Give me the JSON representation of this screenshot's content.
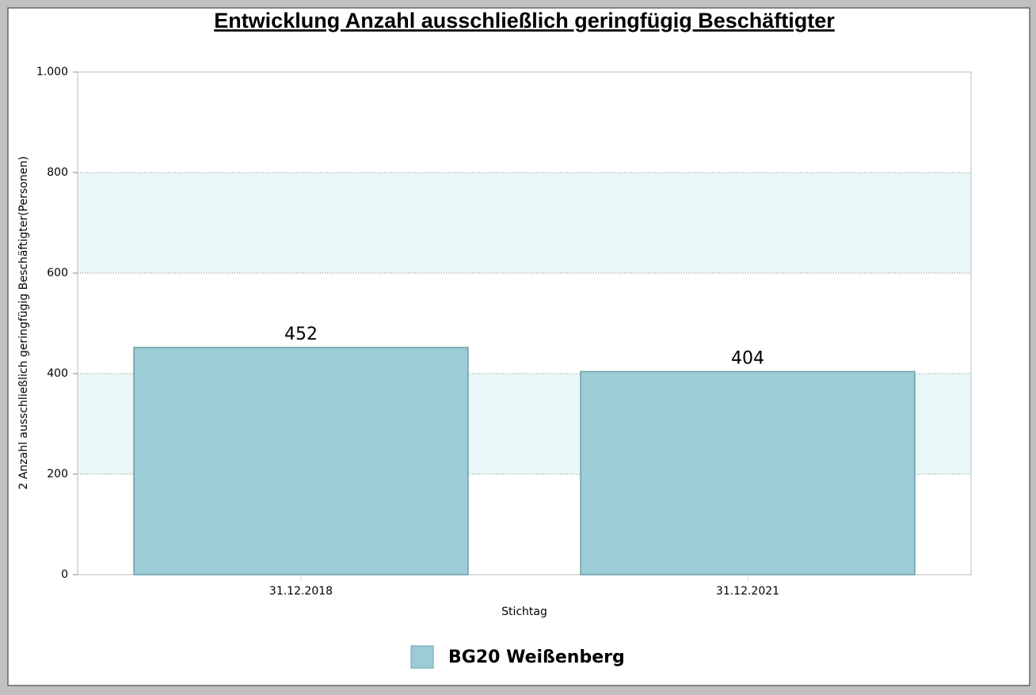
{
  "chart_data": {
    "type": "bar",
    "title": "Entwicklung Anzahl ausschließlich geringfügig Beschäftigter",
    "y_label": "2 Anzahl ausschließlich geringfügig Beschäftigter(Personen)",
    "x_label": "Stichtag",
    "categories": [
      "31.12.2018",
      "31.12.2021"
    ],
    "series": [
      {
        "name": "BG20 Weißenberg",
        "color": "#9ccdd6",
        "values": [
          452,
          404
        ]
      }
    ],
    "ylim": [
      0,
      1000
    ],
    "yticks": [
      0,
      200,
      400,
      600,
      800,
      {
        "value": 1000,
        "label": "1.000"
      }
    ],
    "grid": true,
    "interlaced_bands": true,
    "legend": "bottom"
  }
}
